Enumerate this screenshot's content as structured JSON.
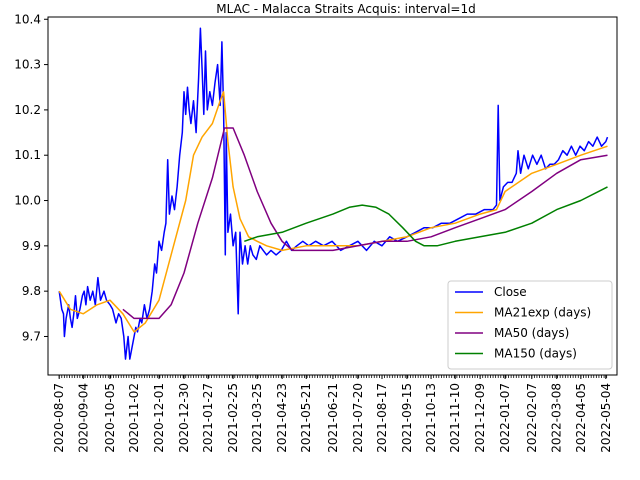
{
  "chart_data": {
    "type": "line",
    "title": "MLAC - Malacca Straits Acquis: interval=1d",
    "xlabel": "",
    "ylabel": "",
    "ylim": [
      9.615,
      10.405
    ],
    "xlim": [
      "2020-07-25",
      "2022-05-17"
    ],
    "grid": false,
    "legend_position": "lower-right",
    "y_ticks": [
      9.7,
      9.8,
      9.9,
      10.0,
      10.1,
      10.2,
      10.3,
      10.4
    ],
    "x_ticks": [
      "2020-08-07",
      "2020-09-04",
      "2020-10-05",
      "2020-11-02",
      "2020-12-01",
      "2020-12-30",
      "2021-01-27",
      "2021-02-25",
      "2021-03-25",
      "2021-04-23",
      "2021-05-21",
      "2021-06-21",
      "2021-07-20",
      "2021-08-17",
      "2021-09-15",
      "2021-10-13",
      "2021-11-10",
      "2021-12-09",
      "2022-01-07",
      "2022-02-07",
      "2022-03-08",
      "2022-04-05",
      "2022-05-04"
    ],
    "series": [
      {
        "name": "Close",
        "color": "#0000ff",
        "points": [
          [
            "2020-08-07",
            9.8
          ],
          [
            "2020-08-10",
            9.76
          ],
          [
            "2020-08-12",
            9.75
          ],
          [
            "2020-08-13",
            9.7
          ],
          [
            "2020-08-15",
            9.74
          ],
          [
            "2020-08-18",
            9.77
          ],
          [
            "2020-08-20",
            9.74
          ],
          [
            "2020-08-22",
            9.72
          ],
          [
            "2020-08-24",
            9.75
          ],
          [
            "2020-08-26",
            9.79
          ],
          [
            "2020-08-28",
            9.74
          ],
          [
            "2020-08-31",
            9.76
          ],
          [
            "2020-09-03",
            9.79
          ],
          [
            "2020-09-05",
            9.8
          ],
          [
            "2020-09-07",
            9.77
          ],
          [
            "2020-09-09",
            9.81
          ],
          [
            "2020-09-12",
            9.78
          ],
          [
            "2020-09-15",
            9.8
          ],
          [
            "2020-09-18",
            9.77
          ],
          [
            "2020-09-21",
            9.83
          ],
          [
            "2020-09-24",
            9.78
          ],
          [
            "2020-09-28",
            9.8
          ],
          [
            "2020-10-01",
            9.78
          ],
          [
            "2020-10-05",
            9.77
          ],
          [
            "2020-10-08",
            9.76
          ],
          [
            "2020-10-12",
            9.73
          ],
          [
            "2020-10-15",
            9.75
          ],
          [
            "2020-10-18",
            9.74
          ],
          [
            "2020-10-21",
            9.7
          ],
          [
            "2020-10-23",
            9.65
          ],
          [
            "2020-10-26",
            9.7
          ],
          [
            "2020-10-28",
            9.65
          ],
          [
            "2020-10-30",
            9.67
          ],
          [
            "2020-11-02",
            9.7
          ],
          [
            "2020-11-04",
            9.72
          ],
          [
            "2020-11-06",
            9.71
          ],
          [
            "2020-11-09",
            9.74
          ],
          [
            "2020-11-11",
            9.73
          ],
          [
            "2020-11-14",
            9.77
          ],
          [
            "2020-11-17",
            9.74
          ],
          [
            "2020-11-20",
            9.76
          ],
          [
            "2020-11-23",
            9.8
          ],
          [
            "2020-11-26",
            9.86
          ],
          [
            "2020-11-28",
            9.84
          ],
          [
            "2020-12-01",
            9.91
          ],
          [
            "2020-12-04",
            9.89
          ],
          [
            "2020-12-07",
            9.93
          ],
          [
            "2020-12-09",
            9.95
          ],
          [
            "2020-12-11",
            10.09
          ],
          [
            "2020-12-13",
            9.97
          ],
          [
            "2020-12-16",
            10.01
          ],
          [
            "2020-12-19",
            9.98
          ],
          [
            "2020-12-22",
            10.03
          ],
          [
            "2020-12-25",
            10.1
          ],
          [
            "2020-12-28",
            10.15
          ],
          [
            "2020-12-30",
            10.24
          ],
          [
            "2021-01-01",
            10.19
          ],
          [
            "2021-01-03",
            10.25
          ],
          [
            "2021-01-05",
            10.2
          ],
          [
            "2021-01-07",
            10.17
          ],
          [
            "2021-01-10",
            10.22
          ],
          [
            "2021-01-13",
            10.15
          ],
          [
            "2021-01-16",
            10.27
          ],
          [
            "2021-01-18",
            10.38
          ],
          [
            "2021-01-20",
            10.29
          ],
          [
            "2021-01-22",
            10.19
          ],
          [
            "2021-01-24",
            10.33
          ],
          [
            "2021-01-26",
            10.2
          ],
          [
            "2021-01-29",
            10.24
          ],
          [
            "2021-02-01",
            10.21
          ],
          [
            "2021-02-04",
            10.26
          ],
          [
            "2021-02-07",
            10.3
          ],
          [
            "2021-02-10",
            10.21
          ],
          [
            "2021-02-12",
            10.35
          ],
          [
            "2021-02-14",
            10.2
          ],
          [
            "2021-02-16",
            9.88
          ],
          [
            "2021-02-17",
            10.15
          ],
          [
            "2021-02-19",
            9.93
          ],
          [
            "2021-02-22",
            9.97
          ],
          [
            "2021-02-25",
            9.9
          ],
          [
            "2021-02-28",
            9.93
          ],
          [
            "2021-03-03",
            9.75
          ],
          [
            "2021-03-05",
            9.93
          ],
          [
            "2021-03-08",
            9.86
          ],
          [
            "2021-03-11",
            9.9
          ],
          [
            "2021-03-14",
            9.86
          ],
          [
            "2021-03-17",
            9.9
          ],
          [
            "2021-03-20",
            9.88
          ],
          [
            "2021-03-24",
            9.87
          ],
          [
            "2021-03-28",
            9.9
          ],
          [
            "2021-04-01",
            9.89
          ],
          [
            "2021-04-05",
            9.88
          ],
          [
            "2021-04-10",
            9.89
          ],
          [
            "2021-04-16",
            9.88
          ],
          [
            "2021-04-22",
            9.89
          ],
          [
            "2021-04-28",
            9.91
          ],
          [
            "2021-05-04",
            9.89
          ],
          [
            "2021-05-10",
            9.9
          ],
          [
            "2021-05-17",
            9.91
          ],
          [
            "2021-05-24",
            9.9
          ],
          [
            "2021-06-01",
            9.91
          ],
          [
            "2021-06-10",
            9.9
          ],
          [
            "2021-06-20",
            9.91
          ],
          [
            "2021-06-30",
            9.89
          ],
          [
            "2021-07-10",
            9.9
          ],
          [
            "2021-07-20",
            9.91
          ],
          [
            "2021-07-30",
            9.89
          ],
          [
            "2021-08-08",
            9.91
          ],
          [
            "2021-08-17",
            9.9
          ],
          [
            "2021-08-26",
            9.92
          ],
          [
            "2021-09-04",
            9.91
          ],
          [
            "2021-09-15",
            9.92
          ],
          [
            "2021-09-25",
            9.93
          ],
          [
            "2021-10-05",
            9.94
          ],
          [
            "2021-10-15",
            9.94
          ],
          [
            "2021-10-25",
            9.95
          ],
          [
            "2021-11-04",
            9.95
          ],
          [
            "2021-11-14",
            9.96
          ],
          [
            "2021-11-24",
            9.97
          ],
          [
            "2021-12-04",
            9.97
          ],
          [
            "2021-12-14",
            9.98
          ],
          [
            "2021-12-24",
            9.98
          ],
          [
            "2021-12-28",
            9.99
          ],
          [
            "2021-12-30",
            10.21
          ],
          [
            "2022-01-01",
            10.0
          ],
          [
            "2022-01-05",
            10.03
          ],
          [
            "2022-01-10",
            10.04
          ],
          [
            "2022-01-15",
            10.04
          ],
          [
            "2022-01-20",
            10.06
          ],
          [
            "2022-01-22",
            10.11
          ],
          [
            "2022-01-25",
            10.06
          ],
          [
            "2022-01-29",
            10.1
          ],
          [
            "2022-02-03",
            10.07
          ],
          [
            "2022-02-08",
            10.1
          ],
          [
            "2022-02-13",
            10.08
          ],
          [
            "2022-02-18",
            10.1
          ],
          [
            "2022-02-23",
            10.07
          ],
          [
            "2022-02-28",
            10.08
          ],
          [
            "2022-03-05",
            10.08
          ],
          [
            "2022-03-10",
            10.09
          ],
          [
            "2022-03-15",
            10.11
          ],
          [
            "2022-03-20",
            10.1
          ],
          [
            "2022-03-25",
            10.12
          ],
          [
            "2022-03-30",
            10.1
          ],
          [
            "2022-04-04",
            10.12
          ],
          [
            "2022-04-09",
            10.11
          ],
          [
            "2022-04-14",
            10.13
          ],
          [
            "2022-04-19",
            10.12
          ],
          [
            "2022-04-24",
            10.14
          ],
          [
            "2022-04-29",
            10.12
          ],
          [
            "2022-05-04",
            10.13
          ],
          [
            "2022-05-06",
            10.14
          ]
        ]
      },
      {
        "name": "MA21exp (days)",
        "color": "#ffa500",
        "points": [
          [
            "2020-08-07",
            9.8
          ],
          [
            "2020-08-20",
            9.76
          ],
          [
            "2020-09-04",
            9.75
          ],
          [
            "2020-09-20",
            9.77
          ],
          [
            "2020-10-05",
            9.78
          ],
          [
            "2020-10-20",
            9.75
          ],
          [
            "2020-11-02",
            9.71
          ],
          [
            "2020-11-15",
            9.73
          ],
          [
            "2020-12-01",
            9.78
          ],
          [
            "2020-12-15",
            9.88
          ],
          [
            "2021-01-01",
            10.0
          ],
          [
            "2021-01-10",
            10.1
          ],
          [
            "2021-01-20",
            10.14
          ],
          [
            "2021-02-01",
            10.17
          ],
          [
            "2021-02-10",
            10.22
          ],
          [
            "2021-02-14",
            10.24
          ],
          [
            "2021-02-19",
            10.13
          ],
          [
            "2021-02-25",
            10.03
          ],
          [
            "2021-03-05",
            9.96
          ],
          [
            "2021-03-15",
            9.92
          ],
          [
            "2021-03-25",
            9.91
          ],
          [
            "2021-04-05",
            9.9
          ],
          [
            "2021-04-23",
            9.89
          ],
          [
            "2021-05-21",
            9.9
          ],
          [
            "2021-06-21",
            9.9
          ],
          [
            "2021-07-20",
            9.9
          ],
          [
            "2021-08-17",
            9.91
          ],
          [
            "2021-09-15",
            9.92
          ],
          [
            "2021-10-13",
            9.94
          ],
          [
            "2021-11-10",
            9.95
          ],
          [
            "2021-12-09",
            9.97
          ],
          [
            "2021-12-28",
            9.98
          ],
          [
            "2022-01-07",
            10.02
          ],
          [
            "2022-02-07",
            10.06
          ],
          [
            "2022-03-08",
            10.08
          ],
          [
            "2022-04-05",
            10.1
          ],
          [
            "2022-05-06",
            10.12
          ]
        ]
      },
      {
        "name": "MA50 (days)",
        "color": "#800080",
        "points": [
          [
            "2020-10-20",
            9.76
          ],
          [
            "2020-11-02",
            9.74
          ],
          [
            "2020-11-20",
            9.74
          ],
          [
            "2020-12-01",
            9.74
          ],
          [
            "2020-12-15",
            9.77
          ],
          [
            "2020-12-30",
            9.84
          ],
          [
            "2021-01-15",
            9.95
          ],
          [
            "2021-02-01",
            10.05
          ],
          [
            "2021-02-15",
            10.16
          ],
          [
            "2021-02-25",
            10.16
          ],
          [
            "2021-03-10",
            10.1
          ],
          [
            "2021-03-25",
            10.02
          ],
          [
            "2021-04-10",
            9.95
          ],
          [
            "2021-04-23",
            9.91
          ],
          [
            "2021-05-05",
            9.89
          ],
          [
            "2021-05-21",
            9.89
          ],
          [
            "2021-06-21",
            9.89
          ],
          [
            "2021-07-20",
            9.9
          ],
          [
            "2021-08-17",
            9.91
          ],
          [
            "2021-09-15",
            9.91
          ],
          [
            "2021-10-13",
            9.92
          ],
          [
            "2021-11-10",
            9.94
          ],
          [
            "2021-12-09",
            9.96
          ],
          [
            "2022-01-07",
            9.98
          ],
          [
            "2022-02-07",
            10.02
          ],
          [
            "2022-03-08",
            10.06
          ],
          [
            "2022-04-05",
            10.09
          ],
          [
            "2022-05-06",
            10.1
          ]
        ]
      },
      {
        "name": "MA150 (days)",
        "color": "#008000",
        "points": [
          [
            "2021-03-10",
            9.91
          ],
          [
            "2021-03-25",
            9.92
          ],
          [
            "2021-04-23",
            9.93
          ],
          [
            "2021-05-21",
            9.95
          ],
          [
            "2021-06-21",
            9.97
          ],
          [
            "2021-07-10",
            9.985
          ],
          [
            "2021-07-25",
            9.99
          ],
          [
            "2021-08-10",
            9.985
          ],
          [
            "2021-08-25",
            9.97
          ],
          [
            "2021-09-10",
            9.94
          ],
          [
            "2021-09-25",
            9.91
          ],
          [
            "2021-10-05",
            9.9
          ],
          [
            "2021-10-20",
            9.9
          ],
          [
            "2021-11-10",
            9.91
          ],
          [
            "2021-12-09",
            9.92
          ],
          [
            "2022-01-07",
            9.93
          ],
          [
            "2022-02-07",
            9.95
          ],
          [
            "2022-03-08",
            9.98
          ],
          [
            "2022-04-05",
            10.0
          ],
          [
            "2022-05-06",
            10.03
          ]
        ]
      }
    ]
  }
}
